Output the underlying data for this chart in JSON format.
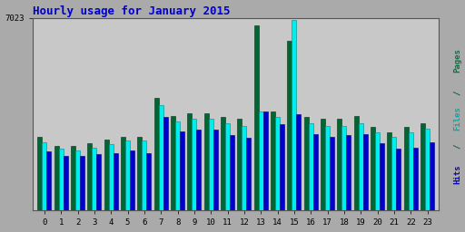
{
  "title": "Hourly usage for January 2015",
  "hours": [
    0,
    1,
    2,
    3,
    4,
    5,
    6,
    7,
    8,
    9,
    10,
    11,
    12,
    13,
    14,
    15,
    16,
    17,
    18,
    19,
    20,
    21,
    22,
    23
  ],
  "pages": [
    2700,
    2350,
    2350,
    2450,
    2580,
    2700,
    2700,
    4100,
    3450,
    3550,
    3550,
    3400,
    3350,
    6750,
    3600,
    6200,
    3400,
    3350,
    3350,
    3450,
    3050,
    2850,
    3050,
    3200
  ],
  "files": [
    2500,
    2250,
    2200,
    2300,
    2430,
    2550,
    2550,
    3850,
    3250,
    3350,
    3350,
    3200,
    3100,
    3600,
    3400,
    6950,
    3200,
    3100,
    3100,
    3200,
    2850,
    2700,
    2850,
    3000
  ],
  "hits": [
    2150,
    2000,
    2000,
    2050,
    2100,
    2200,
    2100,
    3400,
    2900,
    2950,
    2950,
    2750,
    2650,
    3600,
    3150,
    3500,
    2800,
    2700,
    2750,
    2800,
    2450,
    2250,
    2300,
    2500
  ],
  "color_pages": "#006633",
  "color_files": "#00EEEE",
  "color_hits": "#0000CC",
  "color_bg_plot": "#C8C8C8",
  "color_bg_fig": "#AAAAAA",
  "title_color": "#0000CC",
  "ylabel_color_pages": "#007744",
  "ylabel_color_files": "#00AAAA",
  "ylabel_color_hits": "#0000CC",
  "ymax": 7023,
  "bar_width": 0.27
}
